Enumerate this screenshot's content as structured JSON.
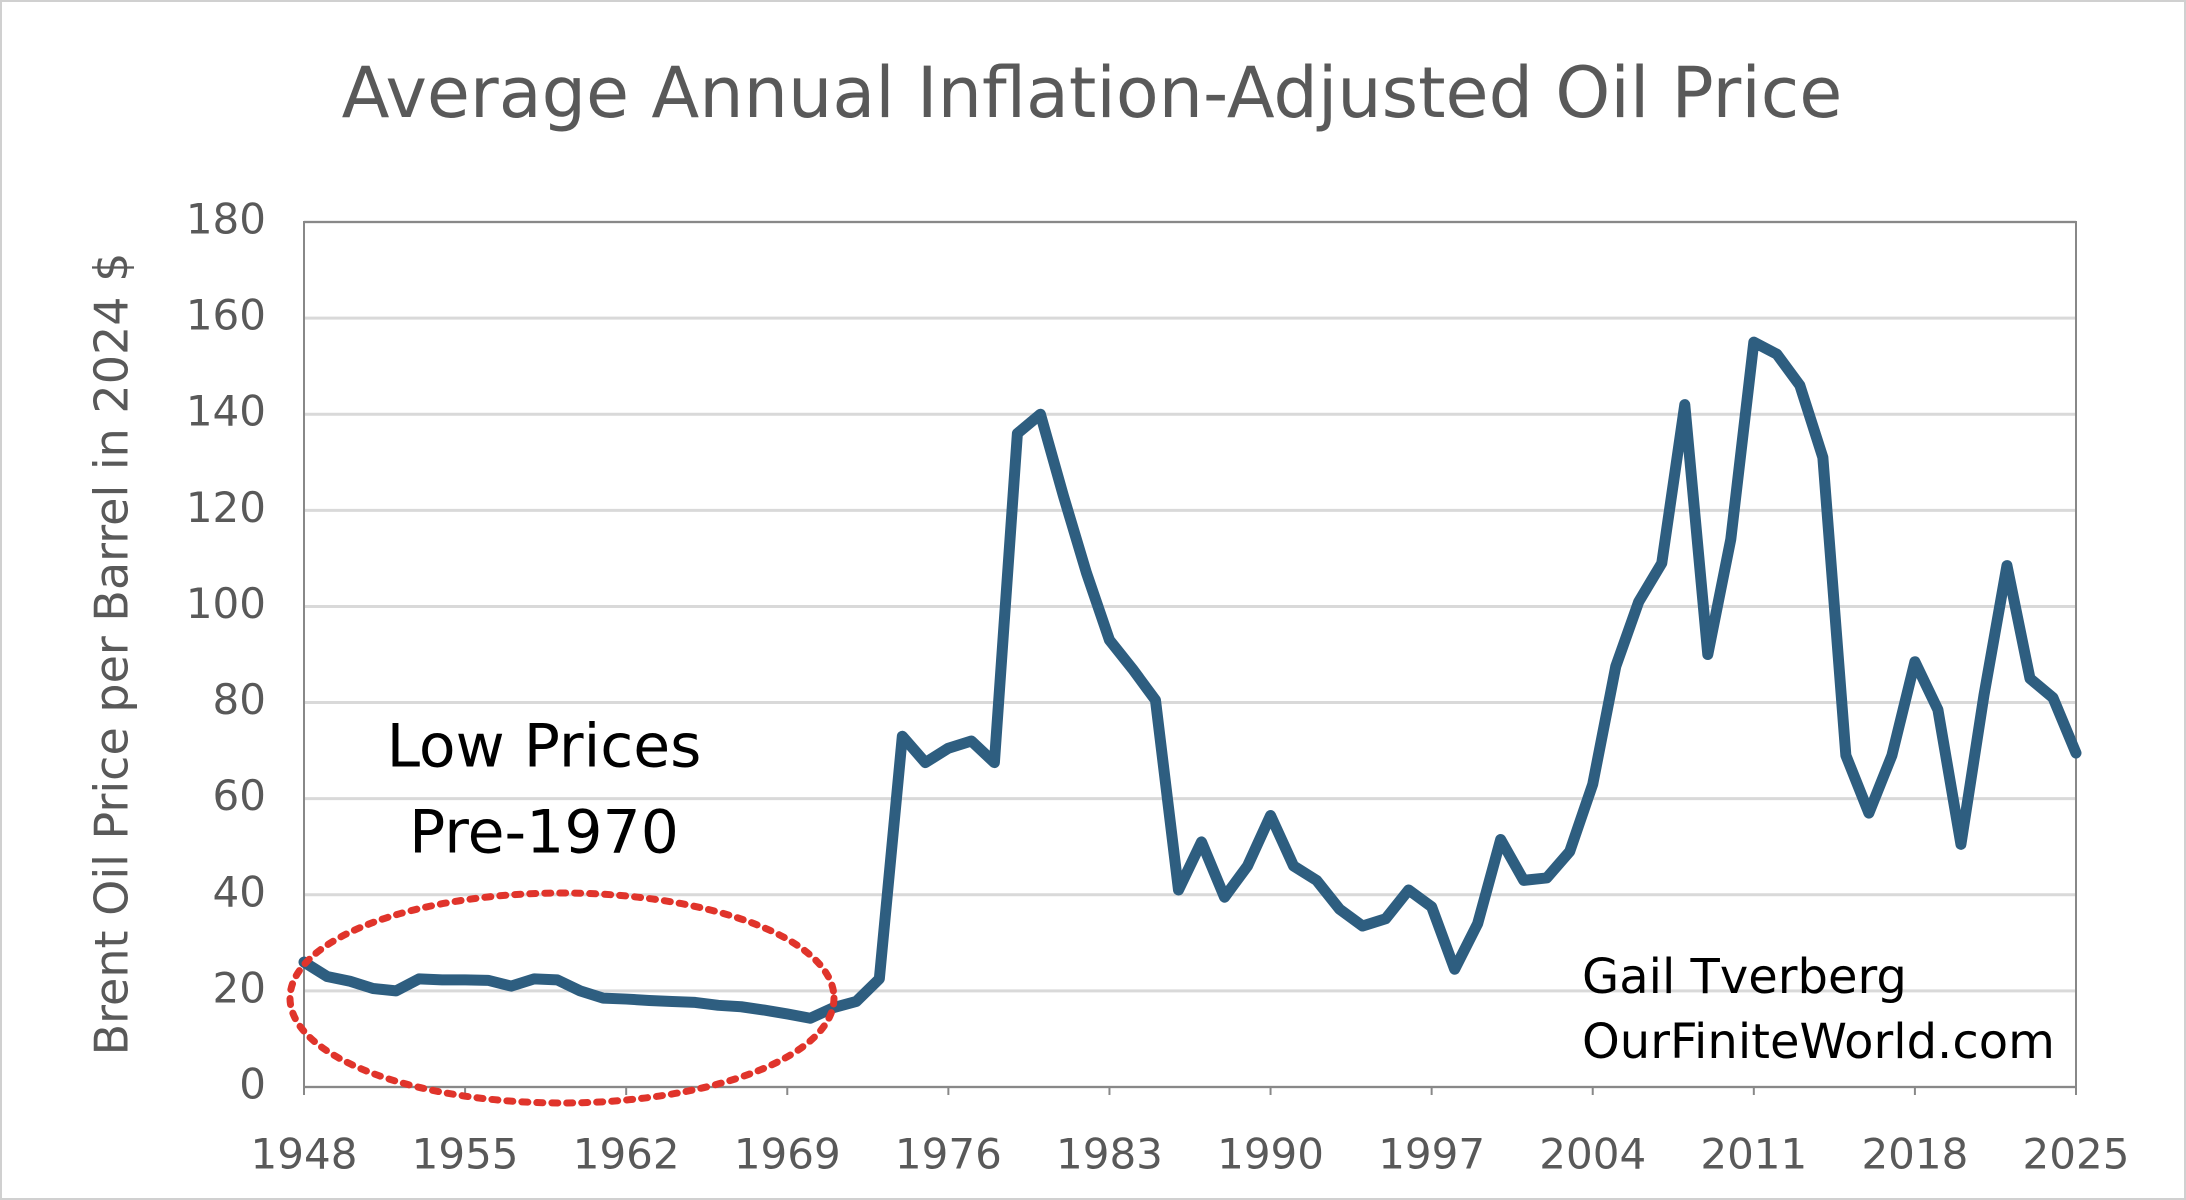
{
  "chart_data": {
    "type": "line",
    "title": "Average Annual Inflation-Adjusted Oil Price",
    "y_label": "Brent Oil Price per Barrel in 2024 $",
    "annotations": [
      [
        "Low Prices",
        "Pre-1970"
      ],
      [
        "Gail Tverberg",
        "OurFiniteWorld.com"
      ]
    ],
    "x": [
      1948,
      1949,
      1950,
      1951,
      1952,
      1953,
      1954,
      1955,
      1956,
      1957,
      1958,
      1959,
      1960,
      1961,
      1962,
      1963,
      1964,
      1965,
      1966,
      1967,
      1968,
      1969,
      1970,
      1971,
      1972,
      1973,
      1974,
      1975,
      1976,
      1977,
      1978,
      1979,
      1980,
      1981,
      1982,
      1983,
      1984,
      1985,
      1986,
      1987,
      1988,
      1989,
      1990,
      1991,
      1992,
      1993,
      1994,
      1995,
      1996,
      1997,
      1998,
      1999,
      2000,
      2001,
      2002,
      2003,
      2004,
      2005,
      2006,
      2007,
      2008,
      2009,
      2010,
      2011,
      2012,
      2013,
      2014,
      2015,
      2016,
      2017,
      2018,
      2019,
      2020,
      2021,
      2022,
      2023,
      2024,
      2025
    ],
    "series": [
      {
        "name": "Brent",
        "color": "#2e5e80",
        "values": [
          26,
          23,
          22,
          20.5,
          20,
          22.5,
          22.3,
          22.3,
          22.2,
          21,
          22.5,
          22.3,
          20,
          18.5,
          18.3,
          18,
          17.8,
          17.6,
          17,
          16.7,
          16,
          15.2,
          14.3,
          16.5,
          17.8,
          22.5,
          73,
          67.5,
          70.5,
          72,
          67.5,
          136,
          140,
          123,
          107,
          93,
          87,
          80.5,
          41,
          51,
          39.5,
          46,
          56.5,
          46,
          43,
          37,
          33.5,
          35,
          41,
          37.5,
          24.5,
          34,
          51.5,
          43,
          43.5,
          49,
          63,
          87.5,
          101,
          109,
          142,
          90,
          114,
          155,
          152.5,
          146,
          131,
          69,
          57,
          69,
          88.5,
          78.5,
          50.5,
          81.5,
          108.5,
          85,
          81,
          69.5
        ]
      }
    ],
    "xlim": [
      1948,
      2025
    ],
    "xticks": [
      1948,
      1955,
      1962,
      1969,
      1976,
      1983,
      1990,
      1997,
      2004,
      2011,
      2018,
      2025
    ],
    "ylim": [
      0,
      180
    ],
    "yticks": [
      0,
      20,
      40,
      60,
      80,
      100,
      120,
      140,
      160,
      180
    ],
    "grid": true
  }
}
